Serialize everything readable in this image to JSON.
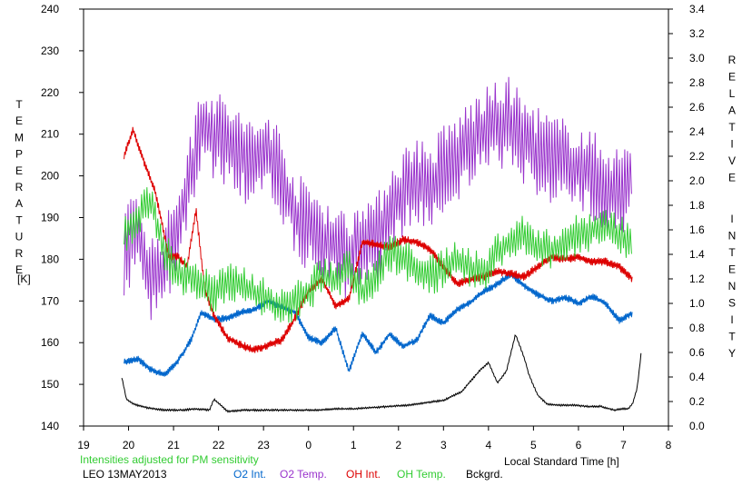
{
  "chart_data": {
    "type": "line",
    "left_axis_label": "TEMPERATURE",
    "left_axis_unit": "[K]",
    "right_axis_label": "RELATIVE INTENSITY",
    "xlabel": "Local Standard Time [h]",
    "note": "Intensities adjusted for PM sensitivity",
    "station_date": "LEO 13MAY2013",
    "x_ticks": [
      "19",
      "20",
      "21",
      "22",
      "23",
      "0",
      "1",
      "2",
      "3",
      "4",
      "5",
      "6",
      "7",
      "8"
    ],
    "xlim": [
      19,
      32
    ],
    "y_left_ticks": [
      "140",
      "150",
      "160",
      "170",
      "180",
      "190",
      "200",
      "210",
      "220",
      "230",
      "240"
    ],
    "ylim_left": [
      140,
      240
    ],
    "y_right_ticks": [
      "0.0",
      "0.2",
      "0.4",
      "0.6",
      "0.8",
      "1.0",
      "1.2",
      "1.4",
      "1.6",
      "1.8",
      "2.0",
      "2.2",
      "2.4",
      "2.6",
      "2.8",
      "3.0",
      "3.2",
      "3.4"
    ],
    "ylim_right": [
      0,
      3.4
    ],
    "grid": false,
    "legend_position": "bottom",
    "series": [
      {
        "name": "O2 Int.",
        "axis": "right",
        "color": "#0066cc",
        "x": [
          19.9,
          20.2,
          20.5,
          20.8,
          21.1,
          21.4,
          21.6,
          21.9,
          22.2,
          22.5,
          22.8,
          23.1,
          23.4,
          23.7,
          24.0,
          24.3,
          24.6,
          24.9,
          25.2,
          25.5,
          25.8,
          26.1,
          26.4,
          26.7,
          27.0,
          27.3,
          27.6,
          27.9,
          28.2,
          28.5,
          28.8,
          29.1,
          29.4,
          29.7,
          30.0,
          30.3,
          30.6,
          30.9,
          31.2
        ],
        "values": [
          0.52,
          0.55,
          0.46,
          0.42,
          0.53,
          0.71,
          0.92,
          0.87,
          0.88,
          0.93,
          0.95,
          1.02,
          0.97,
          0.93,
          0.72,
          0.68,
          0.8,
          0.45,
          0.76,
          0.6,
          0.75,
          0.65,
          0.7,
          0.9,
          0.84,
          0.95,
          1.01,
          1.1,
          1.16,
          1.24,
          1.14,
          1.07,
          1.02,
          1.05,
          1.0,
          1.06,
          1.0,
          0.86,
          0.92
        ]
      },
      {
        "name": "O2 Temp.",
        "axis": "left",
        "color": "#9933cc",
        "x": [
          19.9,
          20.2,
          20.5,
          20.8,
          21.1,
          21.4,
          21.6,
          21.9,
          22.2,
          22.5,
          22.8,
          23.1,
          23.4,
          23.7,
          24.0,
          24.3,
          24.6,
          24.9,
          25.2,
          25.5,
          25.8,
          26.1,
          26.4,
          26.7,
          27.0,
          27.3,
          27.6,
          27.9,
          28.2,
          28.5,
          28.8,
          29.1,
          29.4,
          29.7,
          30.0,
          30.3,
          30.6,
          30.9,
          31.2
        ],
        "values": [
          182,
          186,
          175,
          178,
          188,
          200,
          213,
          210,
          208,
          205,
          202,
          206,
          200,
          190,
          188,
          185,
          183,
          180,
          186,
          184,
          192,
          196,
          200,
          196,
          202,
          204,
          208,
          210,
          212,
          213,
          208,
          206,
          204,
          203,
          202,
          200,
          198,
          196,
          200
        ]
      },
      {
        "name": "OH Int.",
        "axis": "right",
        "color": "#dd0000",
        "x": [
          19.9,
          20.1,
          20.3,
          20.6,
          20.9,
          21.1,
          21.3,
          21.5,
          21.7,
          21.9,
          22.2,
          22.5,
          22.8,
          23.1,
          23.4,
          23.7,
          24.0,
          24.3,
          24.6,
          24.9,
          25.2,
          25.5,
          25.8,
          26.1,
          26.4,
          26.7,
          27.0,
          27.3,
          27.6,
          27.9,
          28.2,
          28.5,
          28.8,
          29.1,
          29.4,
          29.7,
          30.0,
          30.3,
          30.6,
          30.9,
          31.2
        ],
        "values": [
          2.2,
          2.42,
          2.2,
          1.9,
          1.38,
          1.38,
          1.3,
          1.76,
          1.1,
          0.9,
          0.72,
          0.66,
          0.62,
          0.66,
          0.7,
          0.88,
          1.1,
          1.2,
          0.98,
          1.04,
          1.5,
          1.48,
          1.46,
          1.52,
          1.5,
          1.44,
          1.3,
          1.16,
          1.2,
          1.22,
          1.26,
          1.24,
          1.22,
          1.3,
          1.38,
          1.36,
          1.38,
          1.34,
          1.34,
          1.3,
          1.2
        ]
      },
      {
        "name": "OH Temp.",
        "axis": "left",
        "color": "#33cc33",
        "x": [
          19.9,
          20.2,
          20.5,
          20.8,
          21.1,
          21.4,
          21.6,
          21.9,
          22.2,
          22.5,
          22.8,
          23.1,
          23.4,
          23.7,
          24.0,
          24.3,
          24.6,
          24.9,
          25.2,
          25.5,
          25.8,
          26.1,
          26.4,
          26.7,
          27.0,
          27.3,
          27.6,
          27.9,
          28.2,
          28.5,
          28.8,
          29.1,
          29.4,
          29.7,
          30.0,
          30.3,
          30.6,
          30.9,
          31.2
        ],
        "values": [
          186,
          190,
          194,
          182,
          176,
          176,
          174,
          172,
          174,
          174,
          172,
          170,
          168,
          170,
          172,
          176,
          175,
          178,
          172,
          176,
          182,
          180,
          178,
          176,
          178,
          180,
          178,
          176,
          182,
          184,
          186,
          183,
          182,
          184,
          186,
          187,
          188,
          186,
          184
        ]
      },
      {
        "name": "Bckgrd.",
        "axis": "right",
        "color": "#000000",
        "x": [
          19.85,
          19.95,
          20.1,
          20.4,
          20.8,
          21.2,
          21.5,
          21.8,
          21.9,
          22.2,
          22.6,
          23.0,
          23.4,
          23.8,
          24.2,
          24.6,
          25.0,
          25.4,
          25.8,
          26.2,
          26.6,
          27.0,
          27.4,
          27.8,
          28.0,
          28.2,
          28.4,
          28.6,
          28.8,
          28.9,
          29.0,
          29.1,
          29.3,
          29.6,
          29.9,
          30.2,
          30.5,
          30.8,
          31.0,
          31.1,
          31.2,
          31.3,
          31.35,
          31.4
        ],
        "values": [
          0.4,
          0.22,
          0.18,
          0.15,
          0.13,
          0.13,
          0.14,
          0.13,
          0.22,
          0.12,
          0.13,
          0.13,
          0.13,
          0.13,
          0.13,
          0.14,
          0.14,
          0.15,
          0.16,
          0.17,
          0.19,
          0.21,
          0.28,
          0.45,
          0.52,
          0.35,
          0.45,
          0.75,
          0.55,
          0.42,
          0.33,
          0.25,
          0.18,
          0.17,
          0.17,
          0.16,
          0.16,
          0.13,
          0.14,
          0.14,
          0.18,
          0.3,
          0.45,
          0.62
        ]
      }
    ]
  }
}
